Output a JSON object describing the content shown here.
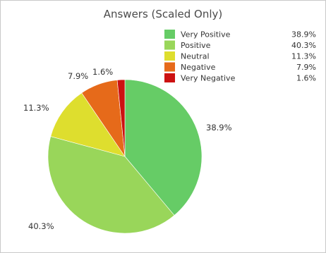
{
  "chart_data": {
    "type": "pie",
    "title": "Answers (Scaled Only)",
    "slices": [
      {
        "name": "Very Positive",
        "value": 38.9,
        "label": "38.9%",
        "color": "#66cc66"
      },
      {
        "name": "Positive",
        "value": 40.3,
        "label": "40.3%",
        "color": "#99d65a"
      },
      {
        "name": "Neutral",
        "value": 11.3,
        "label": "11.3%",
        "color": "#dede2e"
      },
      {
        "name": "Negative",
        "value": 7.9,
        "label": "7.9%",
        "color": "#e66a1a"
      },
      {
        "name": "Very Negative",
        "value": 1.6,
        "label": "1.6%",
        "color": "#cc1111"
      }
    ],
    "legend_placement": "top-right"
  }
}
